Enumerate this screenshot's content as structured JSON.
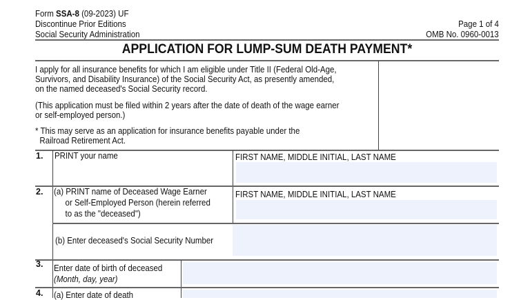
{
  "header": {
    "form_prefix": "Form ",
    "form_id": "SSA-8",
    "form_suffix": " (09-2023) UF",
    "discontinue": "Discontinue Prior Editions",
    "agency": "Social Security Administration",
    "page": "Page 1 of 4",
    "omb": "OMB No. 0960-0013"
  },
  "title": "APPLICATION FOR LUMP-SUM DEATH PAYMENT*",
  "intro": {
    "p1": [
      "I apply for all insurance benefits for which I am eligible under Title II (Federal Old-Age,",
      "Survivors, and Disability Insurance) of the Social Security Act, as presently amended,",
      "on the named deceased's Social Security record."
    ],
    "p2": [
      "(This application must be filed within 2 years after the date of death of the wage earner",
      "or self-employed person.)"
    ],
    "p3": [
      "* This may serve as an application for insurance benefits payable under the",
      "  Railroad Retirement Act."
    ]
  },
  "items": {
    "q1": {
      "num": "1.",
      "label": "PRINT your name",
      "hint": "FIRST NAME, MIDDLE INITIAL, LAST NAME",
      "value": ""
    },
    "q2a": {
      "num": "2.",
      "label": [
        "(a) PRINT name of Deceased Wage Earner",
        "or Self-Employed Person (herein referred",
        "to as the \"deceased\")"
      ],
      "hint": "FIRST NAME, MIDDLE INITIAL, LAST NAME",
      "value": ""
    },
    "q2b": {
      "label": "(b) Enter deceased's Social Security Number",
      "value": ""
    },
    "q3": {
      "num": "3.",
      "label": "Enter date of birth of deceased",
      "sub": "(Month, day, year)",
      "value": ""
    },
    "q4": {
      "num": "4.",
      "label": "(a) Enter date of death",
      "value": ""
    }
  }
}
